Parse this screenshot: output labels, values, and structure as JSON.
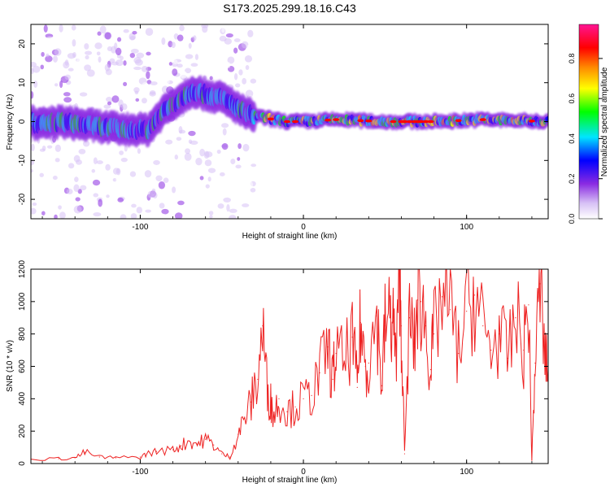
{
  "figure_title": "S173.2025.299.18.16.C43",
  "chart_data": [
    {
      "type": "heatmap",
      "title": "S173.2025.299.18.16.C43",
      "xlabel": "Height of straight line (km)",
      "ylabel": "Frequency (Hz)",
      "xlim": [
        -167,
        150
      ],
      "ylim": [
        -25,
        25
      ],
      "xticks": [
        -100,
        0,
        100
      ],
      "yticks": [
        -20,
        -10,
        0,
        10,
        20
      ],
      "colorbar": {
        "label": "Normalized spectral amplitude",
        "range": [
          0.0,
          0.97
        ],
        "ticks": [
          "0.0",
          "0.2",
          "0.4",
          "0.6",
          "0.8"
        ],
        "tick_values": [
          0.0,
          0.2,
          0.4,
          0.6,
          0.8
        ],
        "colors": [
          "#ffffff",
          "#c8a8f0",
          "#8a2be2",
          "#0000ff",
          "#00e5ff",
          "#00ff00",
          "#ffff00",
          "#ff6600",
          "#ff0000",
          "#ff1493"
        ]
      },
      "ridge": {
        "description_points_x": [
          -165,
          -150,
          -130,
          -110,
          -95,
          -85,
          -75,
          -68,
          -60,
          -50,
          -42,
          -35,
          -25,
          -10,
          0,
          20,
          50,
          80,
          110,
          150
        ],
        "description_points_y": [
          -1,
          0,
          -1,
          -2,
          -2,
          3,
          6,
          8,
          7,
          6,
          4,
          2,
          1,
          0,
          0,
          0.5,
          0,
          0,
          0.5,
          0
        ],
        "peak_amplitude_x_range": [
          -25,
          150
        ]
      }
    },
    {
      "type": "line",
      "xlabel": "Height of straight line (km)",
      "ylabel": "SNR (10 * v/v)",
      "xlim": [
        -167,
        150
      ],
      "ylim": [
        0,
        1200
      ],
      "xticks": [
        -100,
        0,
        100
      ],
      "yticks": [
        0,
        200,
        400,
        600,
        800,
        1000,
        1200
      ],
      "color": "#ee2222",
      "series": [
        {
          "name": "SNR",
          "x": [
            -167,
            -150,
            -140,
            -134,
            -125,
            -115,
            -100,
            -96,
            -90,
            -80,
            -75,
            -70,
            -65,
            -60,
            -55,
            -50,
            -45,
            -40,
            -36,
            -32,
            -28,
            -25,
            -22,
            -20,
            -18,
            -15,
            -10,
            -5,
            0,
            5,
            10,
            15,
            18,
            20,
            25,
            30,
            33,
            35,
            38,
            40,
            45,
            48,
            50,
            53,
            55,
            57,
            59,
            60,
            62,
            65,
            68,
            70,
            72,
            75,
            78,
            80,
            85,
            90,
            95,
            100,
            105,
            110,
            115,
            120,
            125,
            130,
            135,
            138,
            140,
            142,
            145,
            148,
            150
          ],
          "y": [
            25,
            30,
            35,
            70,
            40,
            35,
            40,
            60,
            75,
            85,
            110,
            140,
            120,
            150,
            115,
            60,
            40,
            180,
            280,
            380,
            520,
            850,
            430,
            380,
            300,
            400,
            320,
            350,
            400,
            420,
            560,
            720,
            520,
            680,
            620,
            780,
            470,
            870,
            600,
            620,
            910,
            480,
            850,
            900,
            880,
            620,
            1200,
            850,
            60,
            900,
            720,
            1010,
            1000,
            850,
            580,
            800,
            1030,
            950,
            680,
            940,
            1040,
            850,
            700,
            800,
            650,
            900,
            700,
            980,
            20,
            620,
            1110,
            650,
            590
          ]
        }
      ]
    }
  ]
}
